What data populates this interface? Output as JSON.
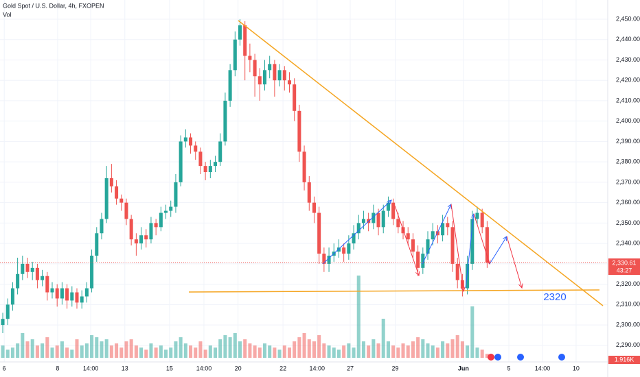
{
  "chart_data": {
    "type": "candlestick",
    "title": "Gold Spot / U.S. Dollar, 4h, FXOPEN",
    "volume_title": "Vol",
    "up_color": "#26a69a",
    "down_color": "#ef5350",
    "candles": [
      [
        2300,
        2306,
        2296,
        2303
      ],
      [
        2303,
        2313,
        2300,
        2310
      ],
      [
        2310,
        2321,
        2307,
        2318
      ],
      [
        2318,
        2333,
        2315,
        2325
      ],
      [
        2325,
        2334,
        2322,
        2330
      ],
      [
        2330,
        2333,
        2323,
        2326
      ],
      [
        2326,
        2331,
        2322,
        2328
      ],
      [
        2328,
        2330,
        2318,
        2322
      ],
      [
        2322,
        2327,
        2319,
        2324
      ],
      [
        2324,
        2326,
        2312,
        2316
      ],
      [
        2316,
        2321,
        2313,
        2318
      ],
      [
        2318,
        2320,
        2309,
        2313
      ],
      [
        2313,
        2321,
        2310,
        2318
      ],
      [
        2318,
        2320,
        2308,
        2312
      ],
      [
        2312,
        2319,
        2309,
        2316
      ],
      [
        2316,
        2318,
        2308,
        2311
      ],
      [
        2311,
        2317,
        2308,
        2314
      ],
      [
        2314,
        2321,
        2311,
        2318
      ],
      [
        2318,
        2337,
        2316,
        2334
      ],
      [
        2334,
        2348,
        2331,
        2345
      ],
      [
        2345,
        2355,
        2342,
        2352
      ],
      [
        2352,
        2378,
        2350,
        2372
      ],
      [
        2372,
        2379,
        2365,
        2368
      ],
      [
        2368,
        2371,
        2359,
        2362
      ],
      [
        2362,
        2364,
        2356,
        2360
      ],
      [
        2360,
        2362,
        2349,
        2352
      ],
      [
        2352,
        2354,
        2339,
        2342
      ],
      [
        2342,
        2345,
        2334,
        2340
      ],
      [
        2340,
        2348,
        2337,
        2344
      ],
      [
        2344,
        2347,
        2338,
        2342
      ],
      [
        2342,
        2353,
        2340,
        2350
      ],
      [
        2350,
        2352,
        2344,
        2348
      ],
      [
        2348,
        2358,
        2346,
        2355
      ],
      [
        2355,
        2359,
        2352,
        2356
      ],
      [
        2356,
        2361,
        2353,
        2358
      ],
      [
        2358,
        2374,
        2355,
        2370
      ],
      [
        2370,
        2393,
        2368,
        2390
      ],
      [
        2390,
        2396,
        2387,
        2392
      ],
      [
        2392,
        2394,
        2384,
        2388
      ],
      [
        2388,
        2390,
        2381,
        2385
      ],
      [
        2385,
        2387,
        2374,
        2378
      ],
      [
        2378,
        2380,
        2371,
        2375
      ],
      [
        2375,
        2381,
        2372,
        2378
      ],
      [
        2378,
        2383,
        2375,
        2380
      ],
      [
        2380,
        2394,
        2378,
        2390
      ],
      [
        2390,
        2414,
        2388,
        2410
      ],
      [
        2410,
        2428,
        2407,
        2425
      ],
      [
        2425,
        2444,
        2422,
        2440
      ],
      [
        2440,
        2450,
        2437,
        2447
      ],
      [
        2447,
        2449,
        2420,
        2432
      ],
      [
        2432,
        2438,
        2424,
        2430
      ],
      [
        2430,
        2433,
        2412,
        2422
      ],
      [
        2422,
        2426,
        2410,
        2418
      ],
      [
        2418,
        2430,
        2415,
        2425
      ],
      [
        2425,
        2432,
        2421,
        2428
      ],
      [
        2428,
        2430,
        2412,
        2420
      ],
      [
        2420,
        2428,
        2417,
        2425
      ],
      [
        2425,
        2427,
        2415,
        2420
      ],
      [
        2420,
        2424,
        2414,
        2418
      ],
      [
        2418,
        2421,
        2400,
        2405
      ],
      [
        2405,
        2408,
        2380,
        2385
      ],
      [
        2385,
        2388,
        2366,
        2370
      ],
      [
        2370,
        2373,
        2356,
        2360
      ],
      [
        2360,
        2363,
        2350,
        2355
      ],
      [
        2355,
        2358,
        2330,
        2335
      ],
      [
        2335,
        2338,
        2326,
        2330
      ],
      [
        2330,
        2338,
        2326,
        2334
      ],
      [
        2334,
        2340,
        2331,
        2336
      ],
      [
        2336,
        2342,
        2333,
        2338
      ],
      [
        2338,
        2340,
        2331,
        2335
      ],
      [
        2335,
        2344,
        2332,
        2340
      ],
      [
        2340,
        2349,
        2337,
        2345
      ],
      [
        2345,
        2354,
        2342,
        2350
      ],
      [
        2350,
        2356,
        2347,
        2352
      ],
      [
        2352,
        2355,
        2346,
        2350
      ],
      [
        2350,
        2359,
        2347,
        2355
      ],
      [
        2355,
        2357,
        2344,
        2348
      ],
      [
        2348,
        2359,
        2345,
        2356
      ],
      [
        2356,
        2363,
        2353,
        2360
      ],
      [
        2360,
        2362,
        2349,
        2352
      ],
      [
        2352,
        2355,
        2345,
        2348
      ],
      [
        2348,
        2351,
        2342,
        2345
      ],
      [
        2345,
        2348,
        2339,
        2342
      ],
      [
        2342,
        2345,
        2333,
        2336
      ],
      [
        2336,
        2339,
        2324,
        2328
      ],
      [
        2328,
        2338,
        2325,
        2335
      ],
      [
        2335,
        2346,
        2332,
        2342
      ],
      [
        2342,
        2350,
        2339,
        2346
      ],
      [
        2346,
        2349,
        2340,
        2344
      ],
      [
        2344,
        2354,
        2341,
        2350
      ],
      [
        2350,
        2353,
        2344,
        2348
      ],
      [
        2348,
        2351,
        2326,
        2330
      ],
      [
        2330,
        2333,
        2318,
        2322
      ],
      [
        2322,
        2325,
        2314,
        2318
      ],
      [
        2318,
        2334,
        2315,
        2330
      ],
      [
        2330,
        2356,
        2327,
        2352
      ],
      [
        2352,
        2358,
        2349,
        2355
      ],
      [
        2355,
        2357,
        2345,
        2348
      ],
      [
        2348,
        2351,
        2328,
        2330.61
      ]
    ],
    "volumes": [
      6,
      4,
      5,
      7,
      12,
      8,
      9,
      6,
      7,
      10,
      5,
      6,
      8,
      5,
      4,
      9,
      6,
      7,
      11,
      10,
      8,
      9,
      6,
      7,
      5,
      8,
      9,
      6,
      5,
      4,
      7,
      5,
      6,
      4,
      5,
      8,
      10,
      7,
      6,
      5,
      8,
      4,
      6,
      5,
      9,
      11,
      10,
      12,
      8,
      9,
      7,
      6,
      5,
      7,
      6,
      5,
      4,
      6,
      5,
      8,
      10,
      12,
      9,
      8,
      11,
      7,
      6,
      5,
      4,
      6,
      7,
      5,
      40,
      8,
      6,
      9,
      7,
      19,
      8,
      6,
      5,
      7,
      6,
      8,
      10,
      9,
      7,
      6,
      5,
      8,
      7,
      9,
      11,
      8,
      6,
      25,
      5,
      4,
      1.916
    ],
    "volume_last_label": "1.916K",
    "last_price": {
      "value": 2330.61,
      "label": "2,330.61"
    },
    "countdown": "43:27",
    "annotation": "2320",
    "ylim": [
      2283.9,
      2459.4
    ],
    "yticks": [
      {
        "value": 2290,
        "label": "2,290.00"
      },
      {
        "value": 2300,
        "label": "2,300.00"
      },
      {
        "value": 2310,
        "label": "2,310.00"
      },
      {
        "value": 2320,
        "label": "2,320.00"
      },
      {
        "value": 2330,
        "label": "2,330.00"
      },
      {
        "value": 2340,
        "label": "2,340.00"
      },
      {
        "value": 2350,
        "label": "2,350.00"
      },
      {
        "value": 2360,
        "label": "2,360.00"
      },
      {
        "value": 2370,
        "label": "2,370.00"
      },
      {
        "value": 2380,
        "label": "2,380.00"
      },
      {
        "value": 2390,
        "label": "2,390.00"
      },
      {
        "value": 2400,
        "label": "2,400.00"
      },
      {
        "value": 2410,
        "label": "2,410.00"
      },
      {
        "value": 2420,
        "label": "2,420.00"
      },
      {
        "value": 2430,
        "label": "2,430.00"
      },
      {
        "value": 2440,
        "label": "2,440.00"
      },
      {
        "value": 2450,
        "label": "2,450.00"
      }
    ],
    "xlim": [
      -0.56,
      122.4
    ],
    "xticks": [
      {
        "value": 0.3,
        "label": "6"
      },
      {
        "value": 11.1,
        "label": "8"
      },
      {
        "value": 17.8,
        "label": "14:00"
      },
      {
        "value": 24.7,
        "label": "13"
      },
      {
        "value": 33.75,
        "label": "15"
      },
      {
        "value": 40.7,
        "label": "14:00"
      },
      {
        "value": 47.6,
        "label": "20"
      },
      {
        "value": 56.7,
        "label": "22"
      },
      {
        "value": 63.6,
        "label": "14:00"
      },
      {
        "value": 70.3,
        "label": "27"
      },
      {
        "value": 79.4,
        "label": "29"
      },
      {
        "value": 93.2,
        "label": "Jun"
      },
      {
        "value": 102.4,
        "label": "5"
      },
      {
        "value": 109.2,
        "label": "14:00"
      },
      {
        "value": 116,
        "label": "10"
      }
    ],
    "grid": true
  }
}
